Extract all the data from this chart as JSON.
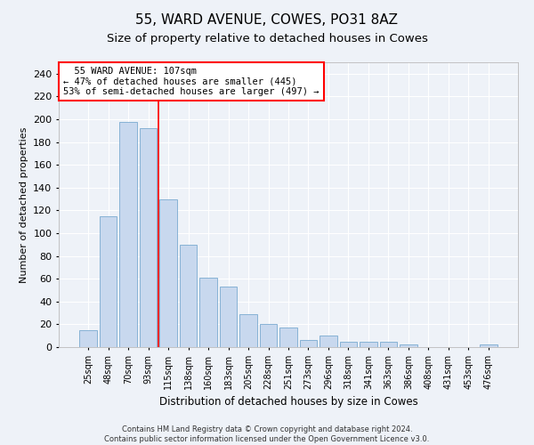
{
  "title": "55, WARD AVENUE, COWES, PO31 8AZ",
  "subtitle": "Size of property relative to detached houses in Cowes",
  "xlabel": "Distribution of detached houses by size in Cowes",
  "ylabel": "Number of detached properties",
  "bar_color": "#c8d8ee",
  "bar_edge_color": "#7aaad0",
  "categories": [
    "25sqm",
    "48sqm",
    "70sqm",
    "93sqm",
    "115sqm",
    "138sqm",
    "160sqm",
    "183sqm",
    "205sqm",
    "228sqm",
    "251sqm",
    "273sqm",
    "296sqm",
    "318sqm",
    "341sqm",
    "363sqm",
    "386sqm",
    "408sqm",
    "431sqm",
    "453sqm",
    "476sqm"
  ],
  "values": [
    15,
    115,
    198,
    192,
    130,
    90,
    61,
    53,
    29,
    20,
    17,
    6,
    10,
    5,
    5,
    5,
    2,
    0,
    0,
    0,
    2
  ],
  "ylim": [
    0,
    250
  ],
  "yticks": [
    0,
    20,
    40,
    60,
    80,
    100,
    120,
    140,
    160,
    180,
    200,
    220,
    240
  ],
  "red_line_x": 3.5,
  "annotation_line1": "  55 WARD AVENUE: 107sqm",
  "annotation_line2": "← 47% of detached houses are smaller (445)",
  "annotation_line3": "53% of semi-detached houses are larger (497) →",
  "footer_line1": "Contains HM Land Registry data © Crown copyright and database right 2024.",
  "footer_line2": "Contains public sector information licensed under the Open Government Licence v3.0.",
  "background_color": "#eef2f8",
  "grid_color": "#ffffff",
  "title_fontsize": 11,
  "subtitle_fontsize": 9.5,
  "ylabel_fontsize": 8,
  "xlabel_fontsize": 8.5,
  "tick_fontsize": 7,
  "annot_fontsize": 7.5,
  "footer_fontsize": 6
}
